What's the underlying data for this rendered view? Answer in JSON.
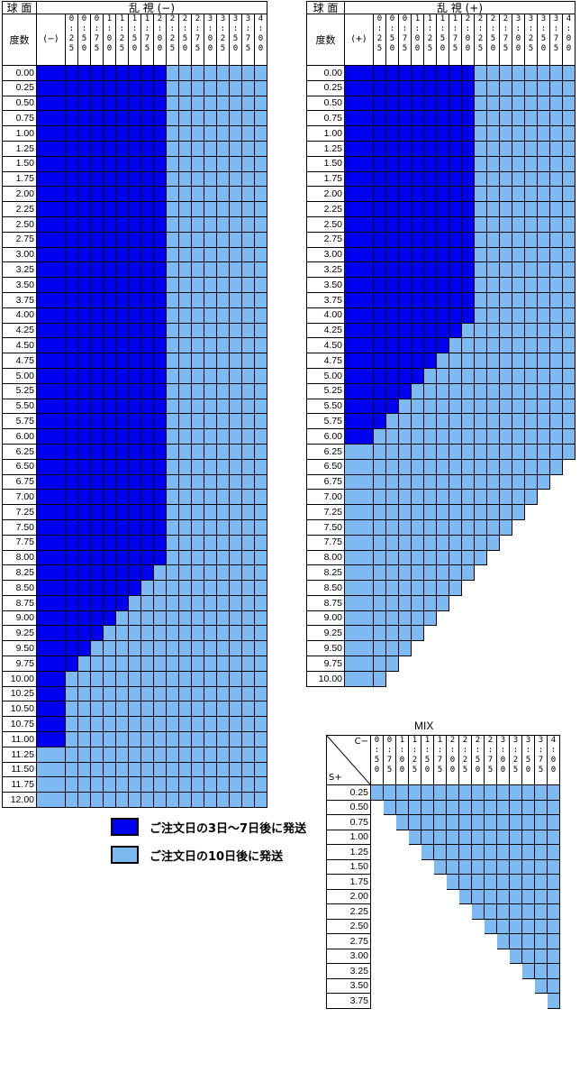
{
  "minus_table": {
    "header_sph": "球 面",
    "header_cyl": "乱 視 (−)",
    "header_power": "度数",
    "header_sign": "(−)",
    "cyl_labels": [
      "0.25",
      "0.50",
      "0.75",
      "1.00",
      "1.25",
      "1.50",
      "1.75",
      "2.00",
      "2.25",
      "2.50",
      "2.75",
      "3.00",
      "3.25",
      "3.50",
      "3.75",
      "4.00"
    ],
    "sph_values": [
      "0.00",
      "0.25",
      "0.50",
      "0.75",
      "1.00",
      "1.25",
      "1.50",
      "1.75",
      "2.00",
      "2.25",
      "2.50",
      "2.75",
      "3.00",
      "3.25",
      "3.50",
      "3.75",
      "4.00",
      "4.25",
      "4.50",
      "4.75",
      "5.00",
      "5.25",
      "5.50",
      "5.75",
      "6.00",
      "6.25",
      "6.50",
      "6.75",
      "7.00",
      "7.25",
      "7.50",
      "7.75",
      "8.00",
      "8.25",
      "8.50",
      "8.75",
      "9.00",
      "9.25",
      "9.50",
      "9.75",
      "10.00",
      "10.25",
      "10.50",
      "10.75",
      "11.00",
      "11.25",
      "11.50",
      "11.75",
      "12.00"
    ],
    "dark_counts": [
      9,
      9,
      9,
      9,
      9,
      9,
      9,
      9,
      9,
      9,
      9,
      9,
      9,
      9,
      9,
      9,
      9,
      9,
      9,
      9,
      9,
      9,
      9,
      9,
      9,
      9,
      9,
      9,
      9,
      9,
      9,
      9,
      9,
      8,
      7,
      6,
      5,
      4,
      3,
      2,
      1,
      1,
      1,
      1,
      1,
      0,
      0,
      0,
      0
    ]
  },
  "plus_table": {
    "header_sph": "球 面",
    "header_cyl": "乱 視 (+)",
    "header_power": "度数",
    "header_sign": "(+)",
    "cyl_labels": [
      "0.25",
      "0.50",
      "0.75",
      "1.00",
      "1.25",
      "1.50",
      "1.75",
      "2.00",
      "2.25",
      "2.50",
      "2.75",
      "3.00",
      "3.25",
      "3.50",
      "3.75",
      "4.00"
    ],
    "sph_values": [
      "0.00",
      "0.25",
      "0.50",
      "0.75",
      "1.00",
      "1.25",
      "1.50",
      "1.75",
      "2.00",
      "2.25",
      "2.50",
      "2.75",
      "3.00",
      "3.25",
      "3.50",
      "3.75",
      "4.00",
      "4.25",
      "4.50",
      "4.75",
      "5.00",
      "5.25",
      "5.50",
      "5.75",
      "6.00",
      "6.25",
      "6.50",
      "6.75",
      "7.00",
      "7.25",
      "7.50",
      "7.75",
      "8.00",
      "8.25",
      "8.50",
      "8.75",
      "9.00",
      "9.25",
      "9.50",
      "9.75",
      "10.00"
    ],
    "dark_counts": [
      9,
      9,
      9,
      9,
      9,
      9,
      9,
      9,
      9,
      9,
      9,
      9,
      9,
      9,
      9,
      9,
      9,
      8,
      7,
      6,
      5,
      4,
      3,
      2,
      1,
      0,
      0,
      0,
      0,
      0,
      0,
      0,
      0,
      0,
      0,
      0,
      0,
      0,
      0,
      0,
      0
    ],
    "light_totals": [
      17,
      17,
      17,
      17,
      17,
      17,
      17,
      17,
      17,
      17,
      17,
      17,
      17,
      17,
      17,
      17,
      17,
      17,
      17,
      17,
      17,
      17,
      17,
      17,
      17,
      17,
      16,
      15,
      14,
      13,
      12,
      11,
      10,
      9,
      8,
      7,
      6,
      5,
      4,
      3,
      2
    ]
  },
  "mix_table": {
    "title": "MIX",
    "corner_top": "C−",
    "corner_bottom": "S+",
    "cyl_labels": [
      "0.50",
      "0.75",
      "1.00",
      "1.25",
      "1.50",
      "1.75",
      "2.00",
      "2.25",
      "2.50",
      "2.75",
      "3.00",
      "3.25",
      "3.50",
      "3.75",
      "4.00"
    ],
    "sph_values": [
      "0.25",
      "0.50",
      "0.75",
      "1.00",
      "1.25",
      "1.50",
      "1.75",
      "2.00",
      "2.25",
      "2.50",
      "2.75",
      "3.00",
      "3.25",
      "3.50",
      "3.75"
    ]
  },
  "legend": [
    {
      "label": "ご注文日の3日〜7日後に発送",
      "color": "#0000f0"
    },
    {
      "label": "ご注文日の10日後に発送",
      "color": "#7dbaf2"
    }
  ]
}
